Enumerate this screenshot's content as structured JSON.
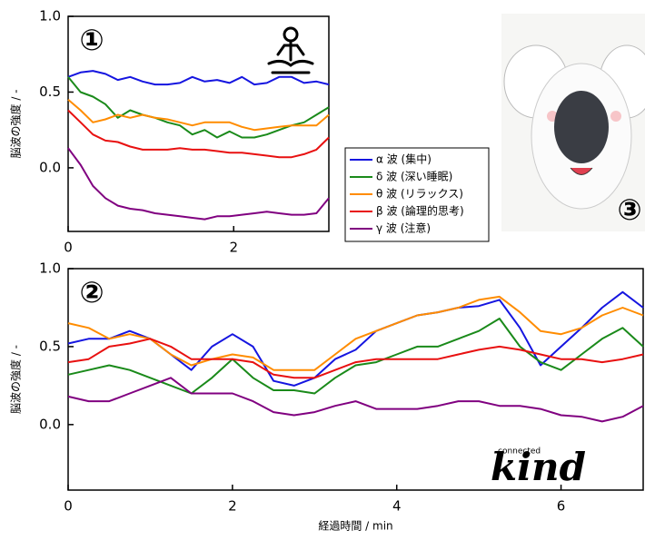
{
  "chart_data": [
    {
      "type": "line",
      "panel_label": "①",
      "ylabel": "脳波の強度 / -",
      "xlim": [
        0,
        3.15
      ],
      "ylim": [
        -0.42,
        1.0
      ],
      "xticks": [
        0,
        2
      ],
      "yticks": [
        {
          "value": 0.0,
          "label": "0.0"
        },
        {
          "value": 0.5,
          "label": "0.5"
        },
        {
          "value": 1.0,
          "label": "1.0"
        }
      ],
      "legend": "right",
      "x": [
        0,
        0.15,
        0.3,
        0.45,
        0.6,
        0.75,
        0.9,
        1.05,
        1.2,
        1.35,
        1.5,
        1.65,
        1.8,
        1.95,
        2.1,
        2.25,
        2.4,
        2.55,
        2.7,
        2.85,
        3.0,
        3.15
      ],
      "series": [
        {
          "name": "α 波 (集中)",
          "color": "#1515e0",
          "values": [
            0.6,
            0.63,
            0.64,
            0.62,
            0.58,
            0.6,
            0.57,
            0.55,
            0.55,
            0.56,
            0.6,
            0.57,
            0.58,
            0.56,
            0.6,
            0.55,
            0.56,
            0.6,
            0.6,
            0.56,
            0.57,
            0.55
          ]
        },
        {
          "name": "δ 波 (深い睡眠)",
          "color": "#1a8a1a",
          "values": [
            0.6,
            0.5,
            0.47,
            0.42,
            0.33,
            0.38,
            0.35,
            0.33,
            0.3,
            0.28,
            0.22,
            0.25,
            0.2,
            0.24,
            0.2,
            0.2,
            0.22,
            0.25,
            0.28,
            0.3,
            0.35,
            0.4
          ]
        },
        {
          "name": "θ 波 (リラックス)",
          "color": "#ff8c00",
          "values": [
            0.45,
            0.38,
            0.3,
            0.32,
            0.35,
            0.33,
            0.35,
            0.33,
            0.32,
            0.3,
            0.28,
            0.3,
            0.3,
            0.3,
            0.27,
            0.25,
            0.26,
            0.27,
            0.28,
            0.28,
            0.28,
            0.35
          ]
        },
        {
          "name": "β 波 (論理的思考)",
          "color": "#e81010",
          "values": [
            0.38,
            0.3,
            0.22,
            0.18,
            0.17,
            0.14,
            0.12,
            0.12,
            0.12,
            0.13,
            0.12,
            0.12,
            0.11,
            0.1,
            0.1,
            0.09,
            0.08,
            0.07,
            0.07,
            0.09,
            0.12,
            0.2
          ]
        },
        {
          "name": "γ 波 (注意)",
          "color": "#800080",
          "values": [
            0.13,
            0.02,
            -0.12,
            -0.2,
            -0.25,
            -0.27,
            -0.28,
            -0.3,
            -0.31,
            -0.32,
            -0.33,
            -0.34,
            -0.32,
            -0.32,
            -0.31,
            -0.3,
            -0.29,
            -0.3,
            -0.31,
            -0.31,
            -0.3,
            -0.2
          ]
        }
      ]
    },
    {
      "type": "line",
      "panel_label": "②",
      "ylabel": "脳波の強度 / -",
      "xlabel": "経過時間 / min",
      "xlim": [
        0,
        7
      ],
      "ylim": [
        -0.42,
        1.0
      ],
      "xticks": [
        0,
        2,
        4,
        6
      ],
      "yticks": [
        {
          "value": 0.0,
          "label": "0.0"
        },
        {
          "value": 0.5,
          "label": "0.5"
        },
        {
          "value": 1.0,
          "label": "1.0"
        }
      ],
      "x": [
        0,
        0.25,
        0.5,
        0.75,
        1,
        1.25,
        1.5,
        1.75,
        2,
        2.25,
        2.5,
        2.75,
        3,
        3.25,
        3.5,
        3.75,
        4,
        4.25,
        4.5,
        4.75,
        5,
        5.25,
        5.5,
        5.75,
        6,
        6.25,
        6.5,
        6.75,
        7
      ],
      "series": [
        {
          "color": "#1515e0",
          "values": [
            0.52,
            0.55,
            0.55,
            0.6,
            0.55,
            0.45,
            0.35,
            0.5,
            0.58,
            0.5,
            0.28,
            0.25,
            0.3,
            0.42,
            0.48,
            0.6,
            0.65,
            0.7,
            0.72,
            0.75,
            0.76,
            0.8,
            0.62,
            0.38,
            0.5,
            0.62,
            0.75,
            0.85,
            0.75
          ]
        },
        {
          "color": "#1a8a1a",
          "values": [
            0.32,
            0.35,
            0.38,
            0.35,
            0.3,
            0.25,
            0.2,
            0.3,
            0.42,
            0.3,
            0.22,
            0.22,
            0.2,
            0.3,
            0.38,
            0.4,
            0.45,
            0.5,
            0.5,
            0.55,
            0.6,
            0.68,
            0.5,
            0.4,
            0.35,
            0.45,
            0.55,
            0.62,
            0.5
          ]
        },
        {
          "color": "#ff8c00",
          "values": [
            0.65,
            0.62,
            0.55,
            0.58,
            0.55,
            0.45,
            0.38,
            0.42,
            0.45,
            0.43,
            0.35,
            0.35,
            0.35,
            0.45,
            0.55,
            0.6,
            0.65,
            0.7,
            0.72,
            0.75,
            0.8,
            0.82,
            0.72,
            0.6,
            0.58,
            0.62,
            0.7,
            0.75,
            0.7
          ]
        },
        {
          "color": "#e81010",
          "values": [
            0.4,
            0.42,
            0.5,
            0.52,
            0.55,
            0.5,
            0.42,
            0.42,
            0.42,
            0.4,
            0.32,
            0.3,
            0.3,
            0.35,
            0.4,
            0.42,
            0.42,
            0.42,
            0.42,
            0.45,
            0.48,
            0.5,
            0.48,
            0.45,
            0.42,
            0.42,
            0.4,
            0.42,
            0.45
          ]
        },
        {
          "color": "#800080",
          "values": [
            0.18,
            0.15,
            0.15,
            0.2,
            0.25,
            0.3,
            0.2,
            0.2,
            0.2,
            0.15,
            0.08,
            0.06,
            0.08,
            0.12,
            0.15,
            0.1,
            0.1,
            0.1,
            0.12,
            0.15,
            0.15,
            0.12,
            0.12,
            0.1,
            0.06,
            0.05,
            0.02,
            0.05,
            0.12
          ]
        }
      ]
    }
  ],
  "photo": {
    "panel_label": "③"
  },
  "logo": {
    "small_text": "connected",
    "text": "kind"
  }
}
